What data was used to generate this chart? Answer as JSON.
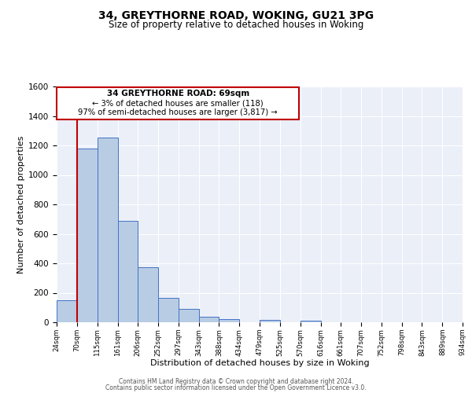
{
  "title_line1": "34, GREYTHORNE ROAD, WOKING, GU21 3PG",
  "title_line2": "Size of property relative to detached houses in Woking",
  "xlabel": "Distribution of detached houses by size in Woking",
  "ylabel": "Number of detached properties",
  "bar_edges": [
    24,
    70,
    115,
    161,
    206,
    252,
    297,
    343,
    388,
    434,
    479,
    525,
    570,
    616,
    661,
    707,
    752,
    798,
    843,
    889,
    934
  ],
  "bar_heights": [
    152,
    1178,
    1255,
    687,
    375,
    163,
    90,
    35,
    22,
    0,
    17,
    0,
    11,
    0,
    0,
    0,
    0,
    0,
    0,
    0
  ],
  "bar_color": "#b8cce4",
  "bar_edge_color": "#4472c4",
  "bg_color": "#eaeff8",
  "grid_color": "#ffffff",
  "red_line_x": 69,
  "annotation_title": "34 GREYTHORNE ROAD: 69sqm",
  "annotation_line2": "← 3% of detached houses are smaller (118)",
  "annotation_line3": "97% of semi-detached houses are larger (3,817) →",
  "annotation_box_color": "#ffffff",
  "annotation_border_color": "#c00000",
  "ylim": [
    0,
    1600
  ],
  "yticks": [
    0,
    200,
    400,
    600,
    800,
    1000,
    1200,
    1400,
    1600
  ],
  "xtick_labels": [
    "24sqm",
    "70sqm",
    "115sqm",
    "161sqm",
    "206sqm",
    "252sqm",
    "297sqm",
    "343sqm",
    "388sqm",
    "434sqm",
    "479sqm",
    "525sqm",
    "570sqm",
    "616sqm",
    "661sqm",
    "707sqm",
    "752sqm",
    "798sqm",
    "843sqm",
    "889sqm",
    "934sqm"
  ],
  "footer_line1": "Contains HM Land Registry data © Crown copyright and database right 2024.",
  "footer_line2": "Contains public sector information licensed under the Open Government Licence v3.0."
}
